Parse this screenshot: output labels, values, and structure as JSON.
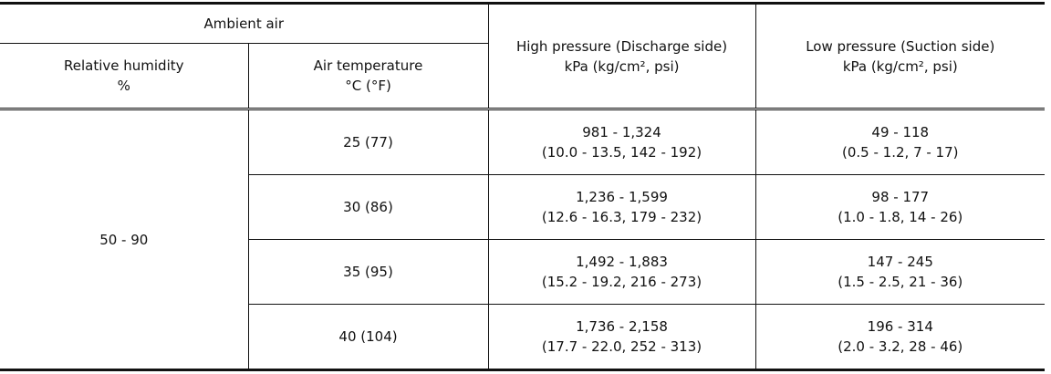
{
  "header": {
    "group": "Ambient air",
    "humidity": [
      "Relative humidity",
      "%"
    ],
    "temperature": [
      "Air temperature",
      "°C (°F)"
    ],
    "high": [
      "High pressure (Discharge side)",
      "kPa (kg/cm², psi)"
    ],
    "low": [
      "Low pressure (Suction side)",
      "kPa (kg/cm², psi)"
    ]
  },
  "table": {
    "humidity": "50 - 90",
    "rows": [
      {
        "temperature": "25 (77)",
        "high": [
          "981 - 1,324",
          "(10.0 - 13.5, 142 - 192)"
        ],
        "low": [
          "49 - 118",
          "(0.5 - 1.2, 7 - 17)"
        ]
      },
      {
        "temperature": "30 (86)",
        "high": [
          "1,236 - 1,599",
          "(12.6 - 16.3, 179 - 232)"
        ],
        "low": [
          "98 - 177",
          "(1.0 - 1.8, 14 - 26)"
        ]
      },
      {
        "temperature": "35 (95)",
        "high": [
          "1,492 - 1,883",
          "(15.2 - 19.2, 216 - 273)"
        ],
        "low": [
          "147 - 245",
          "(1.5 - 2.5, 21 - 36)"
        ]
      },
      {
        "temperature": "40 (104)",
        "high": [
          "1,736 - 2,158",
          "(17.7 - 22.0, 252 - 313)"
        ],
        "low": [
          "196 - 314",
          "(2.0 - 3.2, 28 - 46)"
        ]
      }
    ]
  }
}
